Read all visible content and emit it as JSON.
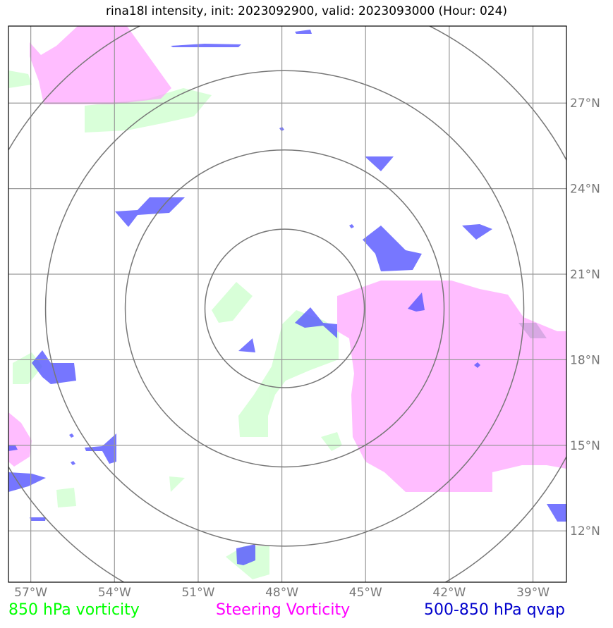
{
  "title": "rina18l intensity, init: 2023092900, valid: 2023093000 (Hour: 024)",
  "x_ticks": [
    "57°W",
    "54°W",
    "51°W",
    "48°W",
    "45°W",
    "42°W",
    "39°W"
  ],
  "y_ticks": [
    "27°N",
    "24°N",
    "21°N",
    "18°N",
    "15°N",
    "12°N"
  ],
  "legend": {
    "vorticity_850": {
      "label": "850 hPa vorticity",
      "color": "#00ff00"
    },
    "steering": {
      "label": "Steering Vorticity",
      "color": "#ff00ff"
    },
    "qvap": {
      "label": "500-850 hPa qvap",
      "color": "#0000cc"
    }
  },
  "map": {
    "lon_range": [
      -57.8,
      -37.8
    ],
    "lat_range": [
      10.2,
      29.7
    ],
    "center": {
      "lon": -47.9,
      "lat": 19.8
    },
    "ring_count": 4,
    "colors": {
      "vorticity_fill": "#ccffcc",
      "steering_fill": "#ff99ff",
      "qvap_fill": "#5555ff",
      "grid": "#999999",
      "rings": "#777777"
    }
  }
}
